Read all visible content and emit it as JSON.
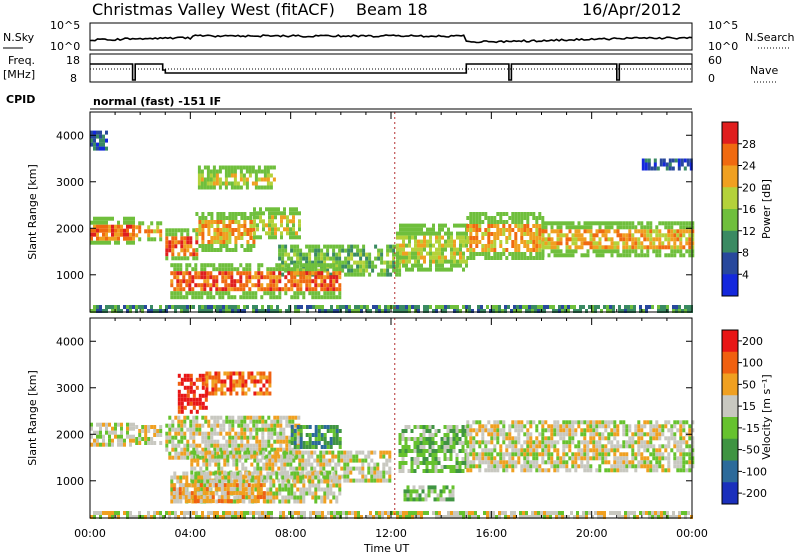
{
  "header": {
    "station": "Christmas Valley West (fitACF)",
    "beam": "Beam 18",
    "date": "16/Apr/2012"
  },
  "strip_labels": {
    "nsky": "N.Sky",
    "nsky_lo": "10^0",
    "nsky_hi": "10^5",
    "freq": "Freq.",
    "freq_unit": "[MHz]",
    "freq_lo": "8",
    "freq_hi": "18",
    "nsearch": "N.Search",
    "nsearch_lo": "10^0",
    "nsearch_hi": "10^5",
    "nave": "Nave",
    "nave_lo": "0",
    "nave_hi": "60",
    "cpid": "CPID",
    "cpid_value": "normal (fast) -151 IF"
  },
  "chart_data": [
    {
      "type": "heatmap",
      "name": "power-panel",
      "ylabel": "Slant Range [km]",
      "y_ticks": [
        "1000",
        "2000",
        "3000",
        "4000"
      ],
      "y_tick_values": [
        1000,
        2000,
        3000,
        4000
      ],
      "ylim": [
        200,
        4500
      ],
      "x_ticks": [
        "00:00",
        "04:00",
        "08:00",
        "12:00",
        "16:00",
        "20:00",
        "00:00"
      ],
      "xlim_hours": [
        0,
        24
      ],
      "colorbar_label": "Power [dB]",
      "colorbar_ticks": [
        "4",
        "8",
        "12",
        "16",
        "20",
        "24",
        "28"
      ],
      "colors": [
        "#1428dc",
        "#28489c",
        "#3a8a62",
        "#6fbf3c",
        "#b4d23a",
        "#f0a020",
        "#f06a10",
        "#e01e1e"
      ],
      "bands": [
        {
          "t0": 0.0,
          "t1": 1.7,
          "r0": 1700,
          "r1": 2250,
          "v": 6
        },
        {
          "t0": 1.8,
          "t1": 2.8,
          "r0": 1800,
          "r1": 2150,
          "v": 5
        },
        {
          "t0": 3.0,
          "t1": 4.2,
          "r0": 1350,
          "r1": 2000,
          "v": 6
        },
        {
          "t0": 4.2,
          "t1": 6.5,
          "r0": 1550,
          "r1": 2350,
          "v": 5
        },
        {
          "t0": 6.5,
          "t1": 8.3,
          "r0": 1800,
          "r1": 2450,
          "v": 4
        },
        {
          "t0": 7.5,
          "t1": 12.3,
          "r0": 1000,
          "r1": 1650,
          "v": 3
        },
        {
          "t0": 3.2,
          "t1": 10.0,
          "r0": 500,
          "r1": 1250,
          "v": 6
        },
        {
          "t0": 12.2,
          "t1": 15.0,
          "r0": 1100,
          "r1": 2100,
          "v": 4
        },
        {
          "t0": 15.0,
          "t1": 18.0,
          "r0": 1350,
          "r1": 2350,
          "v": 5
        },
        {
          "t0": 18.0,
          "t1": 21.0,
          "r0": 1400,
          "r1": 2150,
          "v": 5
        },
        {
          "t0": 21.1,
          "t1": 24.0,
          "r0": 1400,
          "r1": 2150,
          "v": 5
        },
        {
          "t0": 4.3,
          "t1": 7.3,
          "r0": 2850,
          "r1": 3350,
          "v": 4
        },
        {
          "t0": 0.0,
          "t1": 0.6,
          "r0": 3700,
          "r1": 4100,
          "v": 1
        },
        {
          "t0": 22.0,
          "t1": 24.0,
          "r0": 3300,
          "r1": 3500,
          "v": 1
        },
        {
          "t0": 0.0,
          "t1": 24.0,
          "r0": 200,
          "r1": 350,
          "v": 2
        }
      ]
    },
    {
      "type": "heatmap",
      "name": "velocity-panel",
      "ylabel": "Slant Range [km]",
      "y_ticks": [
        "1000",
        "2000",
        "3000",
        "4000"
      ],
      "y_tick_values": [
        1000,
        2000,
        3000,
        4000
      ],
      "ylim": [
        200,
        4500
      ],
      "xlabel": "Time UT",
      "x_ticks": [
        "00:00",
        "04:00",
        "08:00",
        "12:00",
        "16:00",
        "20:00",
        "00:00"
      ],
      "xlim_hours": [
        0,
        24
      ],
      "colorbar_label": "Velocity [m s⁻¹]",
      "colorbar_ticks": [
        "200",
        "100",
        "50",
        "15",
        "-15",
        "-50",
        "-100",
        "-200"
      ],
      "colors": [
        "#1a2fbc",
        "#2c6a9a",
        "#3f9442",
        "#66c22e",
        "#c8c8c0",
        "#f0a020",
        "#f06010",
        "#e81616"
      ],
      "bands": [
        {
          "t0": 0.0,
          "t1": 1.7,
          "r0": 1750,
          "r1": 2250,
          "v": 4
        },
        {
          "t0": 1.8,
          "t1": 2.8,
          "r0": 1800,
          "r1": 2200,
          "v": 4
        },
        {
          "t0": 3.0,
          "t1": 8.3,
          "r0": 1500,
          "r1": 2400,
          "v": 4
        },
        {
          "t0": 4.0,
          "t1": 12.0,
          "r0": 1000,
          "r1": 1650,
          "v": 4
        },
        {
          "t0": 3.2,
          "t1": 10.0,
          "r0": 550,
          "r1": 1200,
          "v": 4
        },
        {
          "t0": 3.3,
          "t1": 7.0,
          "r0": 550,
          "r1": 950,
          "v": 5
        },
        {
          "t0": 8.0,
          "t1": 10.0,
          "r0": 1700,
          "r1": 2200,
          "v": 2
        },
        {
          "t0": 12.3,
          "t1": 15.0,
          "r0": 1200,
          "r1": 2200,
          "v": 3
        },
        {
          "t0": 12.5,
          "t1": 14.5,
          "r0": 600,
          "r1": 900,
          "v": 3
        },
        {
          "t0": 15.0,
          "t1": 24.0,
          "r0": 1200,
          "r1": 2300,
          "v": 4
        },
        {
          "t0": 3.5,
          "t1": 4.6,
          "r0": 2500,
          "r1": 3300,
          "v": 7
        },
        {
          "t0": 4.6,
          "t1": 7.2,
          "r0": 2900,
          "r1": 3350,
          "v": 6
        },
        {
          "t0": 0.0,
          "t1": 24.0,
          "r0": 200,
          "r1": 350,
          "v": 4
        }
      ]
    }
  ]
}
